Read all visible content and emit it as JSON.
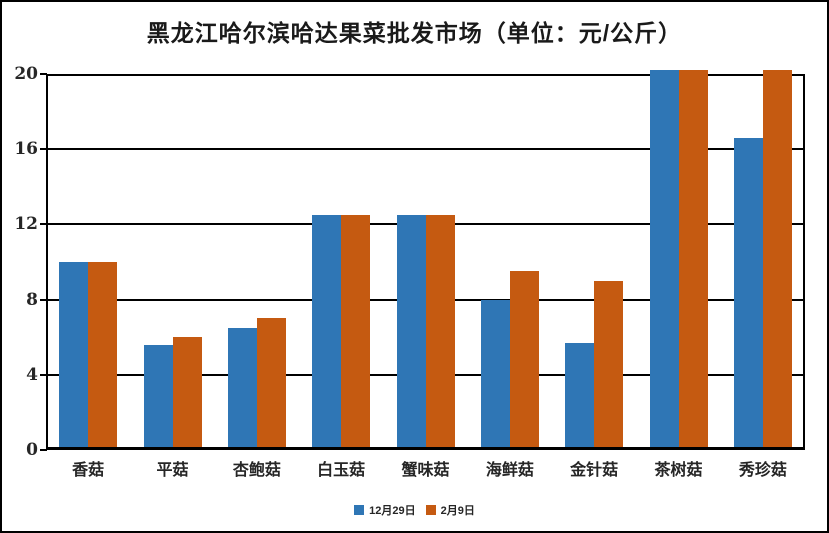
{
  "colors": {
    "series1_blue": "#2F76B5",
    "series2_orange": "#C55A11",
    "axis_black": "#000000",
    "label_dark": "#262626",
    "background": "#FFFFFF"
  },
  "chart_data": {
    "type": "bar",
    "title": "黑龙江哈尔滨哈达果菜批发市场（单位：元/公斤）",
    "categories": [
      "香菇",
      "平菇",
      "杏鲍菇",
      "白玉菇",
      "蟹味菇",
      "海鲜菇",
      "金针菇",
      "茶树菇",
      "秀珍菇"
    ],
    "series": [
      {
        "name": "12月29日",
        "color": "#2F76B5",
        "values": [
          10,
          5.6,
          6.5,
          12.5,
          12.5,
          8,
          5.7,
          20,
          16.6
        ]
      },
      {
        "name": "2月9日",
        "color": "#C55A11",
        "values": [
          10,
          6,
          7,
          12.5,
          12.5,
          9.5,
          9,
          20,
          20
        ]
      }
    ],
    "xlabel": "",
    "ylabel": "",
    "ylim": [
      0,
      20
    ],
    "yticks": [
      0,
      4,
      8,
      12,
      16,
      20
    ],
    "grid": true,
    "legend_position": "bottom"
  }
}
